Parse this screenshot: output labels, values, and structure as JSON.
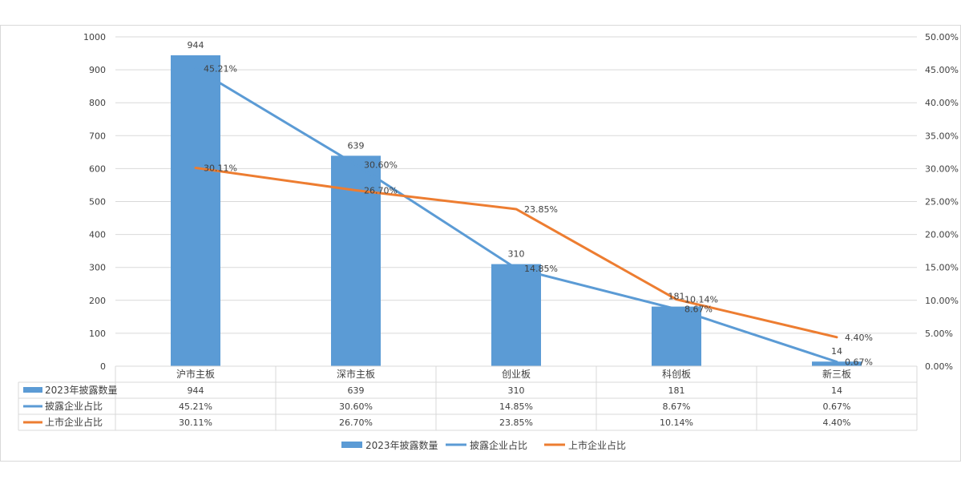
{
  "chart_data": {
    "type": "bar",
    "categories": [
      "沪市主板",
      "深市主板",
      "创业板",
      "科创板",
      "新三板"
    ],
    "series": [
      {
        "name": "2023年披露数量",
        "kind": "bar",
        "axis": "left",
        "color": "#5b9bd5",
        "values": [
          944,
          639,
          310,
          181,
          14
        ],
        "labels": [
          "944",
          "639",
          "310",
          "181",
          "14"
        ]
      },
      {
        "name": "披露企业占比",
        "kind": "line",
        "axis": "right",
        "color": "#5b9bd5",
        "values": [
          45.21,
          30.6,
          14.85,
          8.67,
          0.67
        ],
        "labels": [
          "45.21%",
          "30.60%",
          "14.85%",
          "8.67%",
          "0.67%"
        ]
      },
      {
        "name": "上市企业占比",
        "kind": "line",
        "axis": "right",
        "color": "#ed7d31",
        "values": [
          30.11,
          26.7,
          23.85,
          10.14,
          4.4
        ],
        "labels": [
          "30.11%",
          "26.70%",
          "23.85%",
          "10.14%",
          "4.40%"
        ]
      }
    ],
    "y_left": {
      "min": 0,
      "max": 1000,
      "ticks": [
        "0",
        "100",
        "200",
        "300",
        "400",
        "500",
        "600",
        "700",
        "800",
        "900",
        "1000"
      ]
    },
    "y_right": {
      "min": 0,
      "max": 50,
      "ticks": [
        "0.00%",
        "5.00%",
        "10.00%",
        "15.00%",
        "20.00%",
        "25.00%",
        "30.00%",
        "35.00%",
        "40.00%",
        "45.00%",
        "50.00%"
      ]
    },
    "grid": true,
    "data_table": true,
    "legend": "bottom"
  }
}
